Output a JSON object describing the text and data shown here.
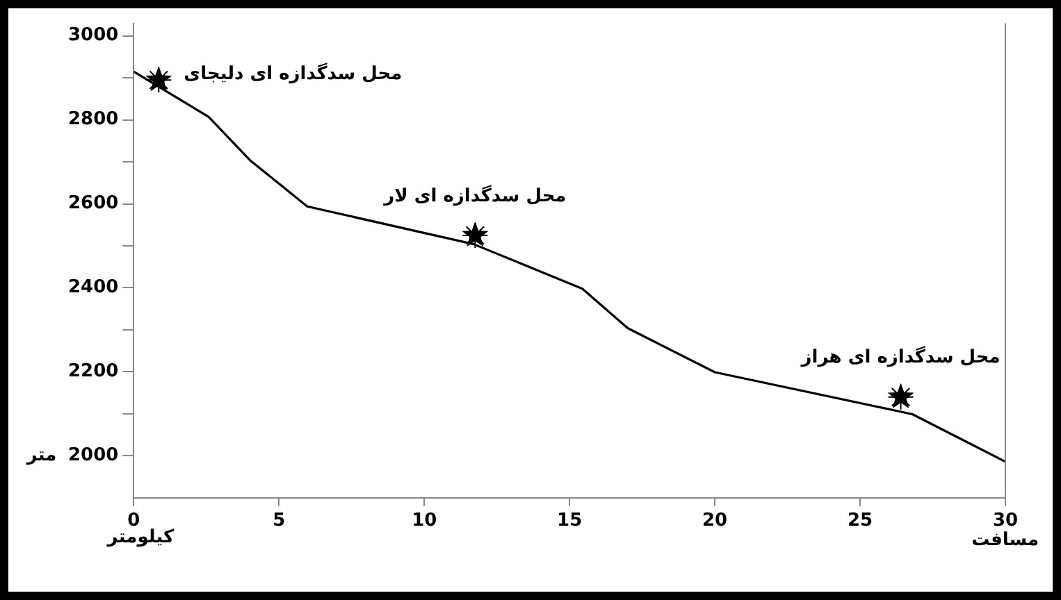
{
  "chart_data": {
    "type": "line",
    "xlabel": "مسافت",
    "ylabel": "متر",
    "annotations": [
      {
        "text": "محل سدگدازه ای دلیجای",
        "x": 0.86,
        "y": 2895
      },
      {
        "text": "محل سدگدازه ای لار",
        "x": 11.75,
        "y": 2525
      },
      {
        "text": "محل سدگدازه ای هراز",
        "x": 26.4,
        "y": 2140
      },
      "کیلومتر"
    ],
    "series": [
      {
        "color": "#000000",
        "x": [
          0,
          2.58,
          4.0,
          5.97,
          11.7,
          15.44,
          17.0,
          20.0,
          26.8,
          30
        ],
        "values": [
          2915,
          2807,
          2704,
          2594,
          2504,
          2398,
          2304,
          2199,
          2099,
          1986
        ],
        "marker": "none",
        "line_style": "solid"
      },
      {
        "type": "scatter",
        "color": "#000000",
        "x": [
          0.86,
          11.75,
          26.4
        ],
        "values": [
          2895,
          2525,
          2140
        ],
        "marker": "star"
      }
    ],
    "xlim": [
      0,
      30
    ],
    "xticks": [
      0,
      5,
      10,
      15,
      20,
      25,
      30
    ],
    "ylim": [
      1900,
      3030
    ],
    "yticks": [
      2000,
      {
        "value": 2100,
        "label": null
      },
      2200,
      {
        "value": 2300,
        "label": null
      },
      2400,
      {
        "value": 2500,
        "label": null
      },
      2600,
      {
        "value": 2700,
        "label": null
      },
      2800,
      {
        "value": 2900,
        "label": null
      },
      3000
    ],
    "grid": false,
    "legend": false
  }
}
